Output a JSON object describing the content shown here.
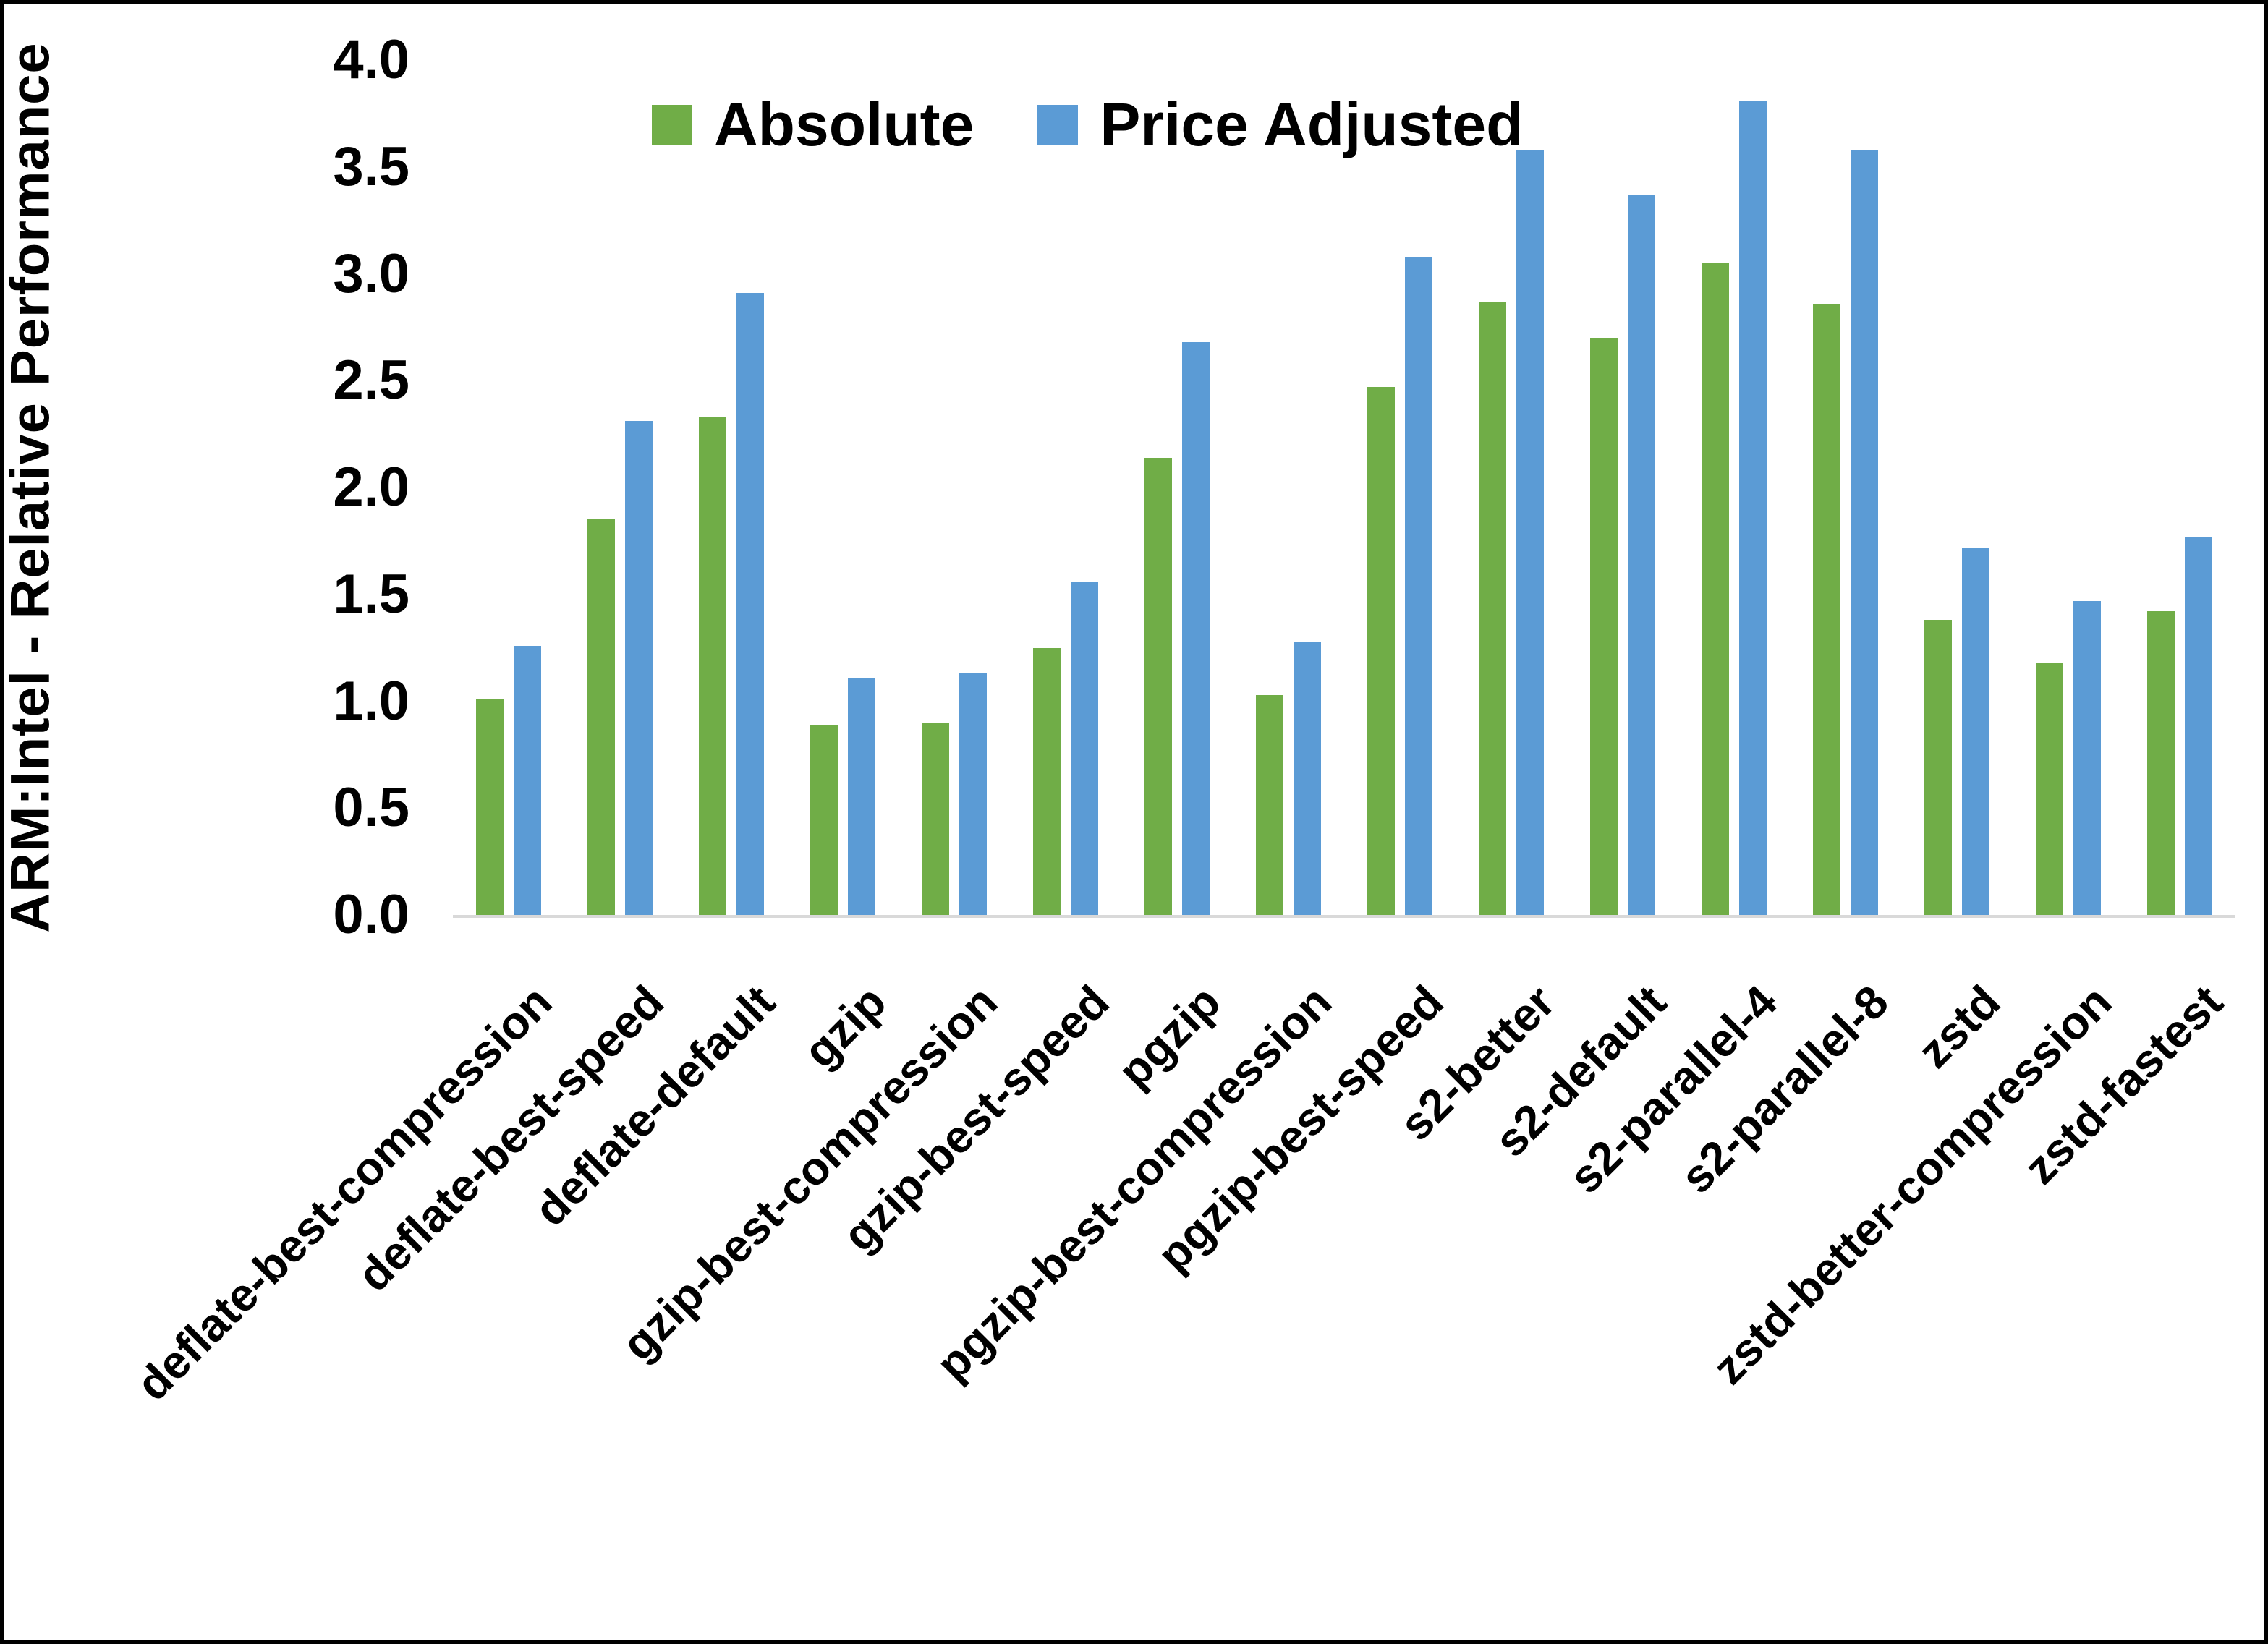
{
  "figure": {
    "background": "#ffffff",
    "border_color": "#000000",
    "axis_line_color": "#d9d9d9",
    "text_color": "#000000"
  },
  "chart_data": {
    "type": "bar",
    "title": "",
    "xlabel": "",
    "ylabel": "ARM:Intel - Relative Performance",
    "ylim": [
      0.0,
      4.0
    ],
    "ytick_step": 0.5,
    "yticks": [
      "4.0",
      "3.5",
      "3.0",
      "2.5",
      "2.0",
      "1.5",
      "1.0",
      "0.5",
      "0.0"
    ],
    "grid": false,
    "legend_position": "top-center",
    "categories": [
      "deflate-best-compression",
      "deflate-best-speed",
      "deflate-default",
      "gzip",
      "gzip-best-compression",
      "gzip-best-speed",
      "pgzip",
      "pgzip-best-compression",
      "pgzip-best-speed",
      "s2-better",
      "s2-default",
      "s2-parallel-4",
      "s2-parallel-8",
      "zstd",
      "zstd-better-compression",
      "zstd-fastest"
    ],
    "series": [
      {
        "name": "Absolute",
        "color": "#70AD47",
        "values": [
          1.01,
          1.85,
          2.33,
          0.89,
          0.9,
          1.25,
          2.14,
          1.03,
          2.47,
          2.87,
          2.7,
          3.05,
          2.86,
          1.38,
          1.18,
          1.42
        ]
      },
      {
        "name": "Price Adjusted",
        "color": "#5B9BD5",
        "values": [
          1.26,
          2.31,
          2.91,
          1.11,
          1.13,
          1.56,
          2.68,
          1.28,
          3.08,
          3.58,
          3.37,
          3.81,
          3.58,
          1.72,
          1.47,
          1.77
        ]
      }
    ]
  }
}
